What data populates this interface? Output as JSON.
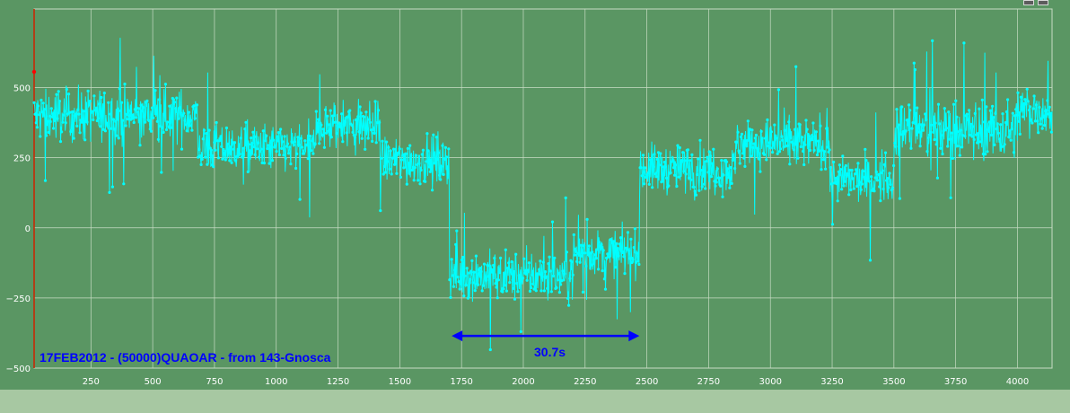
{
  "colors": {
    "background": "#5a9663",
    "grid": "#c8dcc4",
    "series": "#00ffff",
    "annotation": "#0000ff",
    "left_axis_line": "#cc2200",
    "bottom_strip": "#a7c8a2"
  },
  "icons": [
    "window-button-icon",
    "window-button-icon"
  ],
  "chart_data": {
    "type": "scatter",
    "title": "17FEB2012   -   (50000)QUAOAR   -   from 143-Gnosca",
    "xlabel": "",
    "ylabel": "",
    "xlim": [
      20,
      4140
    ],
    "ylim": [
      -500,
      780
    ],
    "x_ticks": [
      250,
      500,
      750,
      1000,
      1250,
      1500,
      1750,
      2000,
      2250,
      2500,
      2750,
      3000,
      3250,
      3500,
      3750,
      4000
    ],
    "y_ticks": [
      -500,
      -250,
      0,
      250,
      500
    ],
    "x_tick_labels": [
      "250",
      "500",
      "750",
      "1000",
      "1250",
      "1500",
      "1750",
      "2000",
      "2250",
      "2500",
      "2750",
      "3000",
      "3250",
      "3500",
      "3750",
      "4000"
    ],
    "y_tick_labels": [
      "−500",
      "−250",
      "0",
      "250",
      "500"
    ],
    "grid": true,
    "legend": "none",
    "series": [
      {
        "segments": [
          {
            "x_start": 20,
            "x_end": 680,
            "level": 400,
            "spread": 130
          },
          {
            "x_start": 680,
            "x_end": 1160,
            "level": 285,
            "spread": 120
          },
          {
            "x_start": 1160,
            "x_end": 1420,
            "level": 360,
            "spread": 130
          },
          {
            "x_start": 1420,
            "x_end": 1700,
            "level": 240,
            "spread": 120
          },
          {
            "x_start": 1700,
            "x_end": 2200,
            "level": -170,
            "spread": 120
          },
          {
            "x_start": 2200,
            "x_end": 2470,
            "level": -90,
            "spread": 110
          },
          {
            "x_start": 2470,
            "x_end": 2860,
            "level": 210,
            "spread": 120
          },
          {
            "x_start": 2860,
            "x_end": 3240,
            "level": 300,
            "spread": 120
          },
          {
            "x_start": 3240,
            "x_end": 3500,
            "level": 170,
            "spread": 110
          },
          {
            "x_start": 3500,
            "x_end": 4000,
            "level": 350,
            "spread": 150
          },
          {
            "x_start": 4000,
            "x_end": 4140,
            "level": 420,
            "spread": 130
          }
        ],
        "point_count": 2000
      }
    ],
    "annotations": [
      {
        "type": "double-arrow",
        "x_start": 1710,
        "x_end": 2470,
        "y": -385,
        "label": "30.7s"
      }
    ]
  }
}
